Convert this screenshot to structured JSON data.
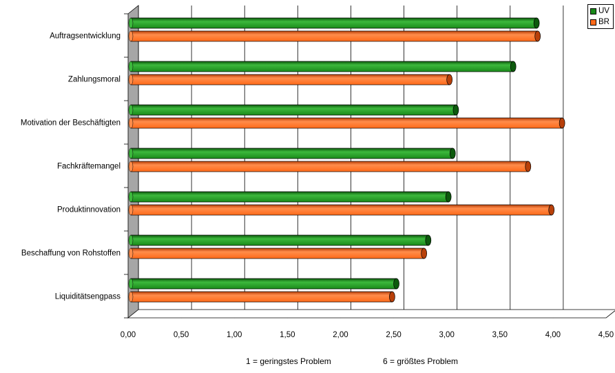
{
  "chart_data": {
    "type": "bar",
    "orientation": "horizontal",
    "categories": [
      "Auftragsentwicklung",
      "Zahlungsmoral",
      "Motivation der Beschäftigten",
      "Fachkräftemangel",
      "Produktinnovation",
      "Beschaffung von Rohstoffen",
      "Liquiditätsengpass"
    ],
    "series": [
      {
        "name": "UV",
        "color": "#1a8a1a",
        "values": [
          3.82,
          3.6,
          3.06,
          3.03,
          2.99,
          2.8,
          2.5
        ]
      },
      {
        "name": "BR",
        "color": "#ff6a1a",
        "values": [
          3.83,
          3.0,
          4.06,
          3.74,
          3.96,
          2.76,
          2.46
        ]
      }
    ],
    "xlim": [
      0,
      4.5
    ],
    "xticks": [
      "0,00",
      "0,50",
      "1,00",
      "1,50",
      "2,00",
      "2,50",
      "3,00",
      "3,50",
      "4,00",
      "4,50"
    ],
    "grid": true,
    "legend_position": "top-right",
    "notes": [
      "1 = geringstes Problem",
      "6 = größtes Problem"
    ]
  }
}
